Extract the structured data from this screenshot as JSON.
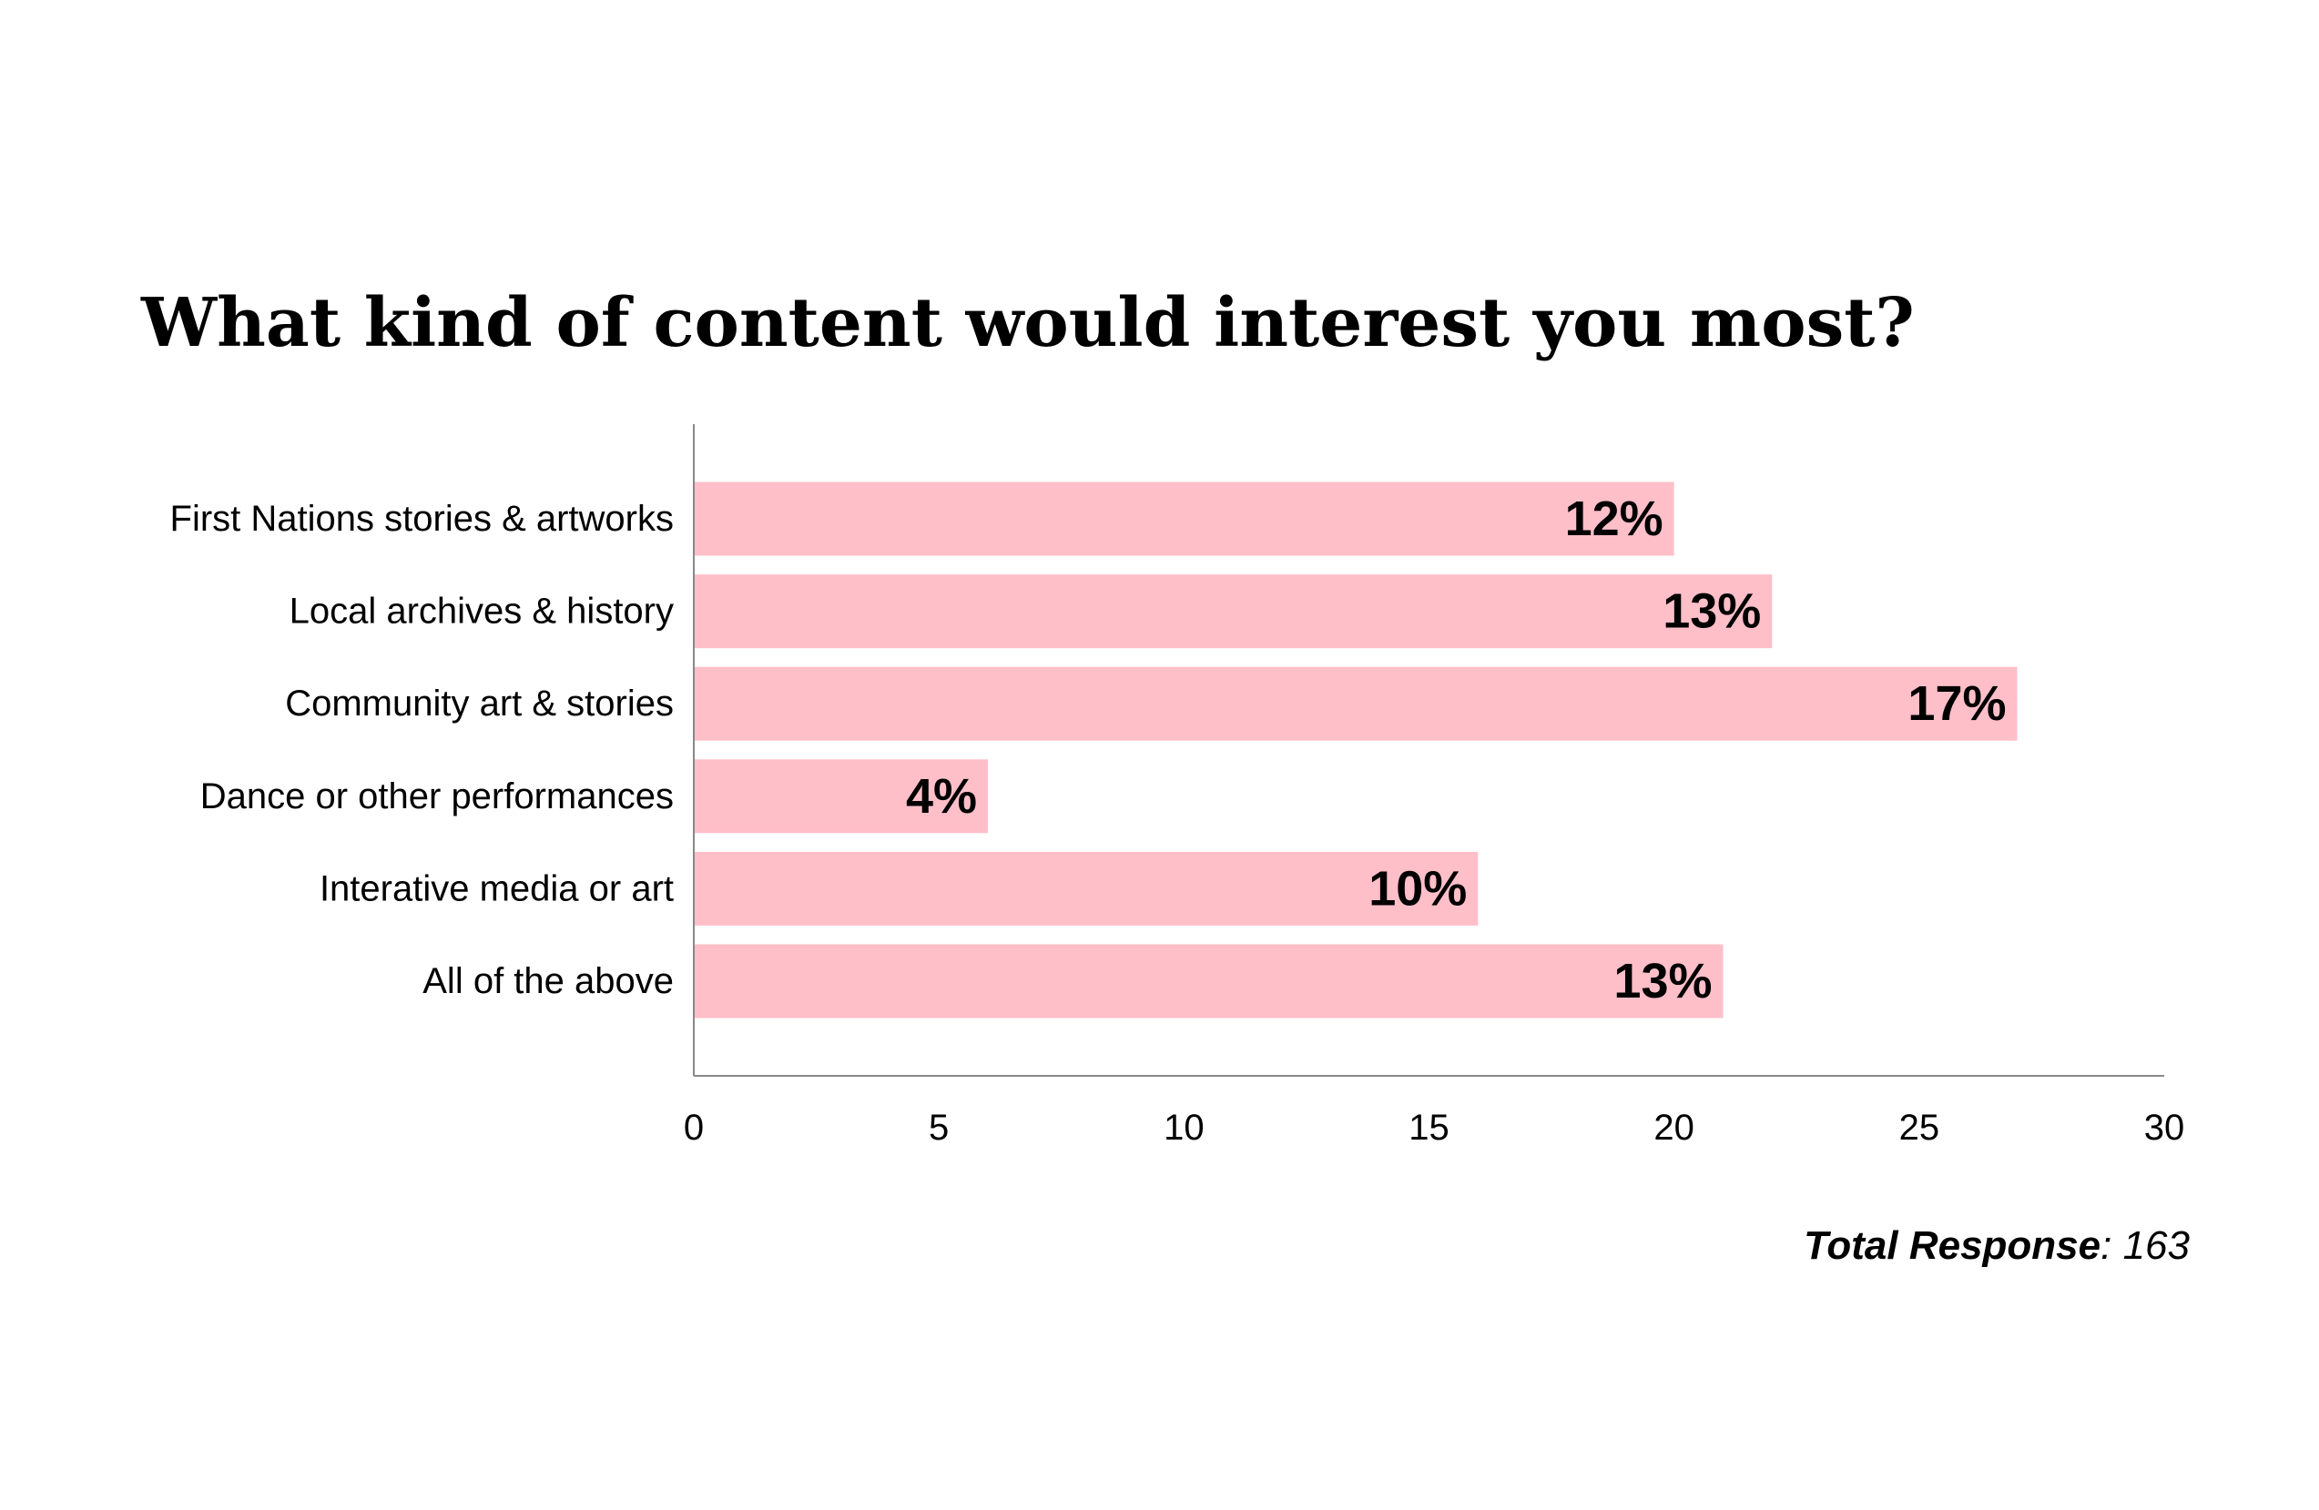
{
  "chart_data": {
    "type": "bar",
    "orientation": "horizontal",
    "title": "What kind of content would interest you most?",
    "categories": [
      "First Nations stories & artworks",
      "Local archives & history",
      "Community art & stories",
      "Dance or other performances",
      "Interative media or art",
      "All of the above"
    ],
    "values": [
      20,
      22,
      27,
      6,
      16,
      21
    ],
    "data_labels": [
      "12%",
      "13%",
      "17%",
      "4%",
      "10%",
      "13%"
    ],
    "xlim": [
      0,
      30
    ],
    "xticks": [
      "0",
      "5",
      "10",
      "15",
      "20",
      "25",
      "30"
    ],
    "bar_color": "#ffbfc9",
    "axis_color": "#888888",
    "grid": false,
    "legend": "none"
  },
  "footer": {
    "label": "Total Response",
    "separator": ": ",
    "value": "163"
  }
}
